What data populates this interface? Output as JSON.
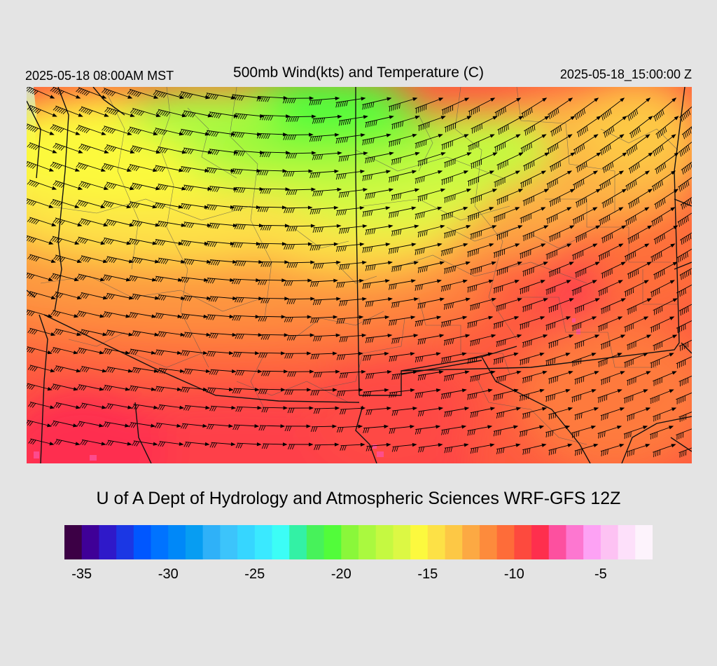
{
  "header": {
    "valid_time": "2025-05-18 08:00AM MST",
    "title": "500mb Wind(kts) and Temperature (C)",
    "run_time": "2025-05-18_15:00:00 Z"
  },
  "footer": {
    "credit": "U of A Dept of Hydrology and Atmospheric Sciences WRF-GFS 12Z"
  },
  "colorbar": {
    "colors": [
      "#3c0045",
      "#3f0097",
      "#2f19c9",
      "#1b37e4",
      "#0057ff",
      "#0073ff",
      "#0088f8",
      "#079df2",
      "#2fb1f8",
      "#3cc4fb",
      "#36d6ff",
      "#3ae9ff",
      "#3cfdf6",
      "#33f1a5",
      "#47f25a",
      "#52fc3a",
      "#8af73a",
      "#aaf93f",
      "#c5f941",
      "#dcf844",
      "#fcf93e",
      "#fde146",
      "#fdc845",
      "#fca943",
      "#fd8b3c",
      "#fe6c39",
      "#fd4a3e",
      "#fe2f4d",
      "#fd509f",
      "#fd77d0",
      "#fda2f4",
      "#fdc2f3",
      "#fde0fa",
      "#fdf3fc"
    ],
    "min": -36,
    "max": -2,
    "tick_values": [
      -35,
      -30,
      -25,
      -20,
      -15,
      -10,
      -5
    ],
    "tick_labels": [
      "-35",
      "-30",
      "-25",
      "-20",
      "-15",
      "-10",
      "-5"
    ]
  },
  "map": {
    "field": "500mb temperature (C) with wind barbs (kts)",
    "missing_color": "#d3d3d3",
    "border_color": "#000000",
    "county_color": "#555555"
  }
}
